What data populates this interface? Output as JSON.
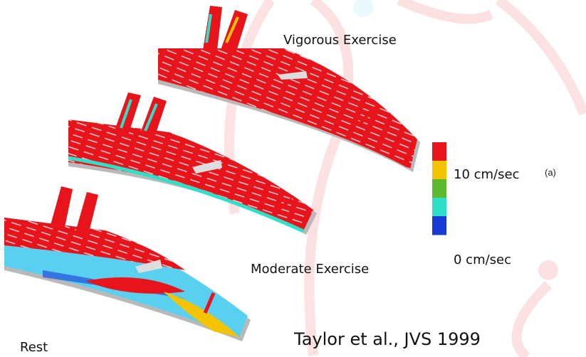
{
  "panels": [
    {
      "label": "Vigorous Exercise"
    },
    {
      "label": "Moderate Exercise"
    },
    {
      "label": "Rest"
    }
  ],
  "colorbar": {
    "colors": [
      "#e8141c",
      "#f5c400",
      "#5cb82e",
      "#2ee0c8",
      "#1a3ad6"
    ],
    "max_label": "10 cm/sec",
    "min_label": "0 cm/sec"
  },
  "figure_label": "(a)",
  "citation": "Taylor et al., JVS 1999"
}
